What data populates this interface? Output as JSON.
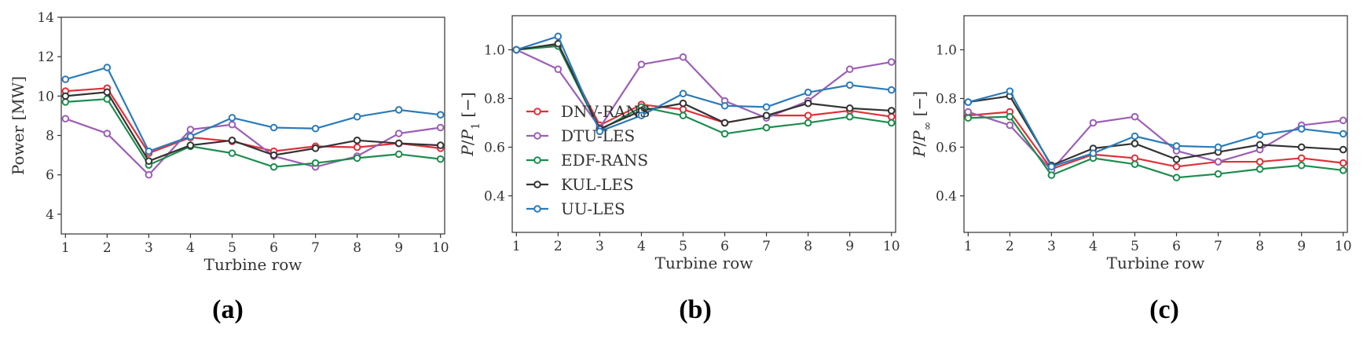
{
  "chart_data": [
    {
      "type": "line",
      "panel_label": "(a)",
      "xlabel": "Turbine row",
      "ylabel": "Power [MW]",
      "ylabel_parts": [],
      "xlim": [
        0.9,
        10.1
      ],
      "ylim": [
        3,
        14
      ],
      "x_ticks": [
        1,
        2,
        3,
        4,
        5,
        6,
        7,
        8,
        9,
        10
      ],
      "y_ticks": [
        4,
        6,
        8,
        10,
        12,
        14
      ],
      "grid": false,
      "legend": false,
      "series": [
        {
          "name": "DNV-RANS",
          "color": "#e0303a",
          "values": [
            10.25,
            10.4,
            7.1,
            7.9,
            7.7,
            7.2,
            7.45,
            7.4,
            7.6,
            7.35
          ]
        },
        {
          "name": "DTU-LES",
          "color": "#9b5fb5",
          "values": [
            8.85,
            8.1,
            6.0,
            8.3,
            8.55,
            6.95,
            6.4,
            6.95,
            8.1,
            8.4
          ]
        },
        {
          "name": "EDF-RANS",
          "color": "#1e8c4e",
          "values": [
            9.7,
            9.85,
            6.5,
            7.45,
            7.1,
            6.4,
            6.6,
            6.85,
            7.05,
            6.8
          ]
        },
        {
          "name": "KUL-LES",
          "color": "#333333",
          "values": [
            10.0,
            10.2,
            6.7,
            7.5,
            7.75,
            7.0,
            7.35,
            7.75,
            7.6,
            7.5
          ]
        },
        {
          "name": "UU-LES",
          "color": "#2b7bb9",
          "values": [
            10.85,
            11.45,
            7.2,
            7.95,
            8.9,
            8.4,
            8.35,
            8.95,
            9.3,
            9.05
          ]
        }
      ]
    },
    {
      "type": "line",
      "panel_label": "(b)",
      "xlabel": "Turbine row",
      "ylabel": "",
      "ylabel_parts": [
        "P",
        "/",
        "P",
        "1",
        " [−]"
      ],
      "xlim": [
        0.9,
        10.1
      ],
      "ylim": [
        0.25,
        1.14
      ],
      "x_ticks": [
        1,
        2,
        3,
        4,
        5,
        6,
        7,
        8,
        9,
        10
      ],
      "y_ticks": [
        0.4,
        0.6,
        0.8,
        1.0
      ],
      "grid": false,
      "legend": "center-left",
      "series": [
        {
          "name": "DNV-RANS",
          "color": "#e0303a",
          "values": [
            1.0,
            1.02,
            0.69,
            0.775,
            0.755,
            0.7,
            0.73,
            0.73,
            0.75,
            0.725
          ]
        },
        {
          "name": "DTU-LES",
          "color": "#9b5fb5",
          "values": [
            1.0,
            0.92,
            0.68,
            0.94,
            0.97,
            0.79,
            0.72,
            0.79,
            0.92,
            0.95
          ]
        },
        {
          "name": "EDF-RANS",
          "color": "#1e8c4e",
          "values": [
            1.0,
            1.015,
            0.67,
            0.765,
            0.73,
            0.655,
            0.68,
            0.7,
            0.725,
            0.7
          ]
        },
        {
          "name": "KUL-LES",
          "color": "#333333",
          "values": [
            1.0,
            1.025,
            0.675,
            0.75,
            0.78,
            0.7,
            0.73,
            0.78,
            0.76,
            0.75
          ]
        },
        {
          "name": "UU-LES",
          "color": "#2b7bb9",
          "values": [
            1.0,
            1.055,
            0.665,
            0.73,
            0.82,
            0.77,
            0.765,
            0.825,
            0.855,
            0.835
          ]
        }
      ]
    },
    {
      "type": "line",
      "panel_label": "(c)",
      "xlabel": "Turbine row",
      "ylabel": "",
      "ylabel_parts": [
        "P",
        "/",
        "P",
        "∞",
        " [−]"
      ],
      "xlim": [
        0.9,
        10.1
      ],
      "ylim": [
        0.25,
        1.14
      ],
      "x_ticks": [
        1,
        2,
        3,
        4,
        5,
        6,
        7,
        8,
        9,
        10
      ],
      "y_ticks": [
        0.4,
        0.6,
        0.8,
        1.0
      ],
      "grid": false,
      "legend": false,
      "series": [
        {
          "name": "DNV-RANS",
          "color": "#e0303a",
          "values": [
            0.73,
            0.745,
            0.51,
            0.57,
            0.555,
            0.52,
            0.54,
            0.54,
            0.555,
            0.535
          ]
        },
        {
          "name": "DTU-LES",
          "color": "#9b5fb5",
          "values": [
            0.745,
            0.69,
            0.505,
            0.7,
            0.725,
            0.585,
            0.54,
            0.59,
            0.69,
            0.71
          ]
        },
        {
          "name": "EDF-RANS",
          "color": "#1e8c4e",
          "values": [
            0.72,
            0.725,
            0.485,
            0.555,
            0.53,
            0.475,
            0.49,
            0.51,
            0.525,
            0.505
          ]
        },
        {
          "name": "KUL-LES",
          "color": "#333333",
          "values": [
            0.785,
            0.81,
            0.525,
            0.595,
            0.615,
            0.55,
            0.58,
            0.61,
            0.6,
            0.59
          ]
        },
        {
          "name": "UU-LES",
          "color": "#2b7bb9",
          "values": [
            0.785,
            0.83,
            0.52,
            0.575,
            0.645,
            0.605,
            0.6,
            0.65,
            0.675,
            0.655
          ]
        }
      ]
    }
  ]
}
